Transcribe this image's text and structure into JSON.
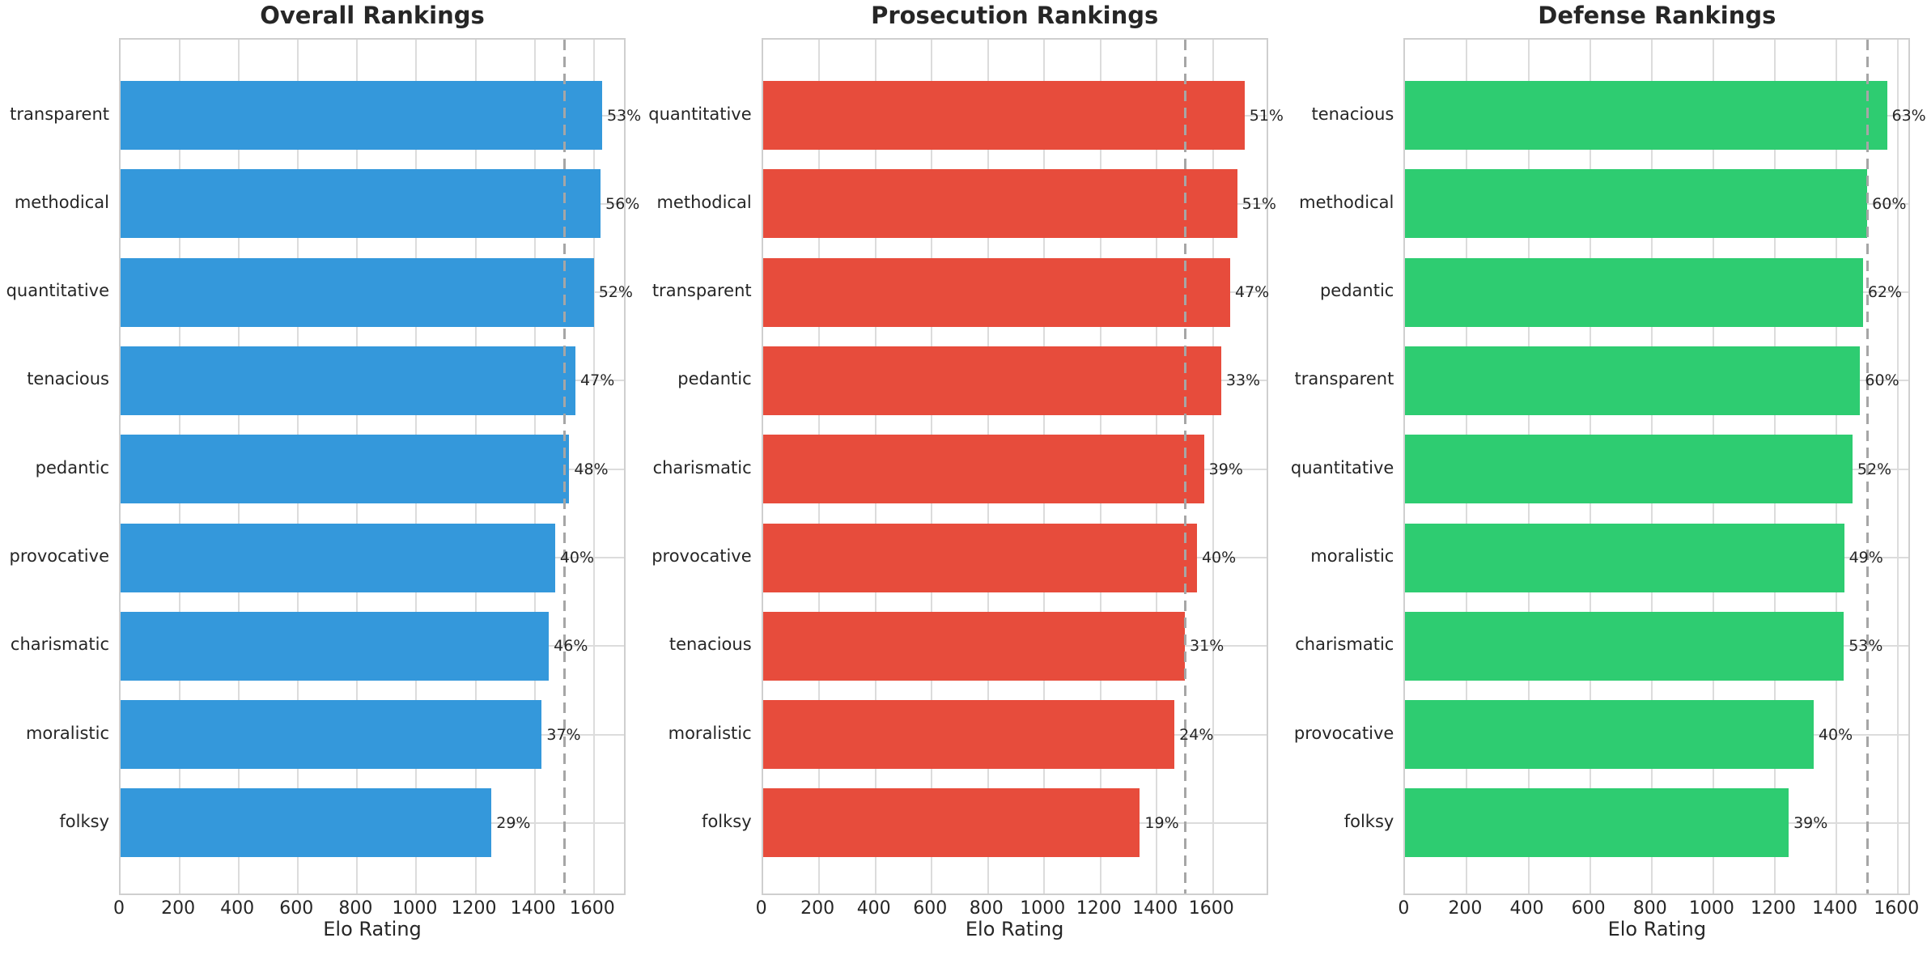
{
  "figure": {
    "background_color": "#ffffff",
    "text_color": "#262626",
    "grid_color": "#dcdcdc",
    "spine_color": "#cfcfcf",
    "baseline_color": "#a6a6a6"
  },
  "chart_data": [
    {
      "type": "bar",
      "orientation": "horizontal",
      "title": "Overall Rankings",
      "xlabel": "Elo Rating",
      "bar_color": "#3498db",
      "xlim": [
        0,
        1713
      ],
      "x_ticks": [
        0,
        200,
        400,
        600,
        800,
        1000,
        1200,
        1400,
        1600
      ],
      "baseline_value": 1500,
      "grid": true,
      "categories": [
        "transparent",
        "methodical",
        "quantitative",
        "tenacious",
        "pedantic",
        "provocative",
        "charismatic",
        "moralistic",
        "folksy"
      ],
      "values": [
        1628,
        1623,
        1600,
        1538,
        1517,
        1469,
        1448,
        1424,
        1254
      ],
      "value_labels": [
        "53%",
        "56%",
        "52%",
        "47%",
        "48%",
        "40%",
        "46%",
        "37%",
        "29%"
      ]
    },
    {
      "type": "bar",
      "orientation": "horizontal",
      "title": "Prosecution Rankings",
      "xlabel": "Elo Rating",
      "bar_color": "#e74c3c",
      "xlim": [
        0,
        1801
      ],
      "x_ticks": [
        0,
        200,
        400,
        600,
        800,
        1000,
        1200,
        1400,
        1600
      ],
      "baseline_value": 1500,
      "grid": true,
      "categories": [
        "quantitative",
        "methodical",
        "transparent",
        "pedantic",
        "charismatic",
        "provocative",
        "tenacious",
        "moralistic",
        "folksy"
      ],
      "values": [
        1712,
        1686,
        1661,
        1629,
        1568,
        1543,
        1500,
        1463,
        1340
      ],
      "value_labels": [
        "51%",
        "51%",
        "47%",
        "33%",
        "39%",
        "40%",
        "31%",
        "24%",
        "19%"
      ]
    },
    {
      "type": "bar",
      "orientation": "horizontal",
      "title": "Defense Rankings",
      "xlabel": "Elo Rating",
      "bar_color": "#2ecc71",
      "xlim": [
        0,
        1645
      ],
      "x_ticks": [
        0,
        200,
        400,
        600,
        800,
        1000,
        1200,
        1400,
        1600
      ],
      "baseline_value": 1500,
      "grid": true,
      "categories": [
        "tenacious",
        "methodical",
        "pedantic",
        "transparent",
        "quantitative",
        "moralistic",
        "charismatic",
        "provocative",
        "folksy"
      ],
      "values": [
        1564,
        1500,
        1486,
        1477,
        1452,
        1425,
        1424,
        1326,
        1245
      ],
      "value_labels": [
        "63%",
        "60%",
        "62%",
        "60%",
        "52%",
        "49%",
        "53%",
        "40%",
        "39%"
      ]
    }
  ]
}
